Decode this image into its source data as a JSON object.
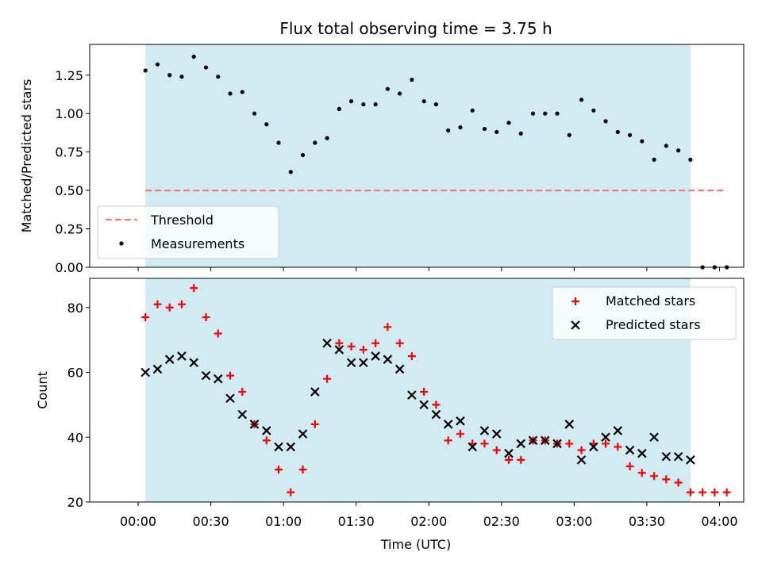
{
  "chart_data": {
    "type": "scatter",
    "title": "Flux total observing time = 3.75 h",
    "xlabel": "Time (UTC)",
    "x_ticks": [
      "00:00",
      "00:30",
      "01:00",
      "01:30",
      "02:00",
      "02:30",
      "03:00",
      "03:30",
      "04:00"
    ],
    "shaded_region": {
      "from_min": 3,
      "to_min": 228,
      "color": "#add8e6"
    },
    "panels": [
      {
        "ylabel": "Matched/Predicted stars",
        "ylim": [
          0,
          1.45
        ],
        "y_ticks": [
          "0.00",
          "0.25",
          "0.50",
          "0.75",
          "1.00",
          "1.25"
        ],
        "legend": {
          "placement": "lower-left",
          "entries": [
            "Threshold",
            "Measurements"
          ]
        },
        "threshold": {
          "name": "Threshold",
          "value": 0.5,
          "x_from_min": 3,
          "x_to_min": 243,
          "color": "#f08080"
        },
        "series": [
          {
            "name": "Measurements",
            "marker": "dot",
            "color": "#000000",
            "x_min": [
              3,
              8,
              13,
              18,
              23,
              28,
              33,
              38,
              43,
              48,
              53,
              58,
              63,
              68,
              73,
              78,
              83,
              88,
              93,
              98,
              103,
              108,
              113,
              118,
              123,
              128,
              133,
              138,
              143,
              148,
              153,
              158,
              163,
              168,
              173,
              178,
              183,
              188,
              193,
              198,
              203,
              208,
              213,
              218,
              223,
              228,
              233,
              238,
              243
            ],
            "y": [
              1.28,
              1.32,
              1.25,
              1.24,
              1.37,
              1.3,
              1.24,
              1.13,
              1.14,
              1.0,
              0.93,
              0.81,
              0.62,
              0.73,
              0.81,
              0.84,
              1.03,
              1.08,
              1.06,
              1.06,
              1.16,
              1.13,
              1.22,
              1.08,
              1.06,
              0.89,
              0.91,
              1.02,
              0.9,
              0.88,
              0.94,
              0.87,
              1.0,
              1.0,
              1.0,
              0.86,
              1.09,
              1.02,
              0.95,
              0.88,
              0.86,
              0.82,
              0.7,
              0.79,
              0.76,
              0.7,
              0.0,
              0.0,
              0.0
            ]
          }
        ]
      },
      {
        "ylabel": "Count",
        "ylim": [
          20,
          89
        ],
        "y_ticks": [
          "20",
          "40",
          "60",
          "80"
        ],
        "legend": {
          "placement": "upper-right",
          "entries": [
            "Matched stars",
            "Predicted stars"
          ]
        },
        "series": [
          {
            "name": "Matched stars",
            "marker": "plus",
            "color": "#ff0000",
            "x_min": [
              3,
              8,
              13,
              18,
              23,
              28,
              33,
              38,
              43,
              48,
              53,
              58,
              63,
              68,
              73,
              78,
              83,
              88,
              93,
              98,
              103,
              108,
              113,
              118,
              123,
              128,
              133,
              138,
              143,
              148,
              153,
              158,
              163,
              168,
              173,
              178,
              183,
              188,
              193,
              198,
              203,
              208,
              213,
              218,
              223,
              228,
              233,
              238,
              243
            ],
            "y": [
              77,
              81,
              80,
              81,
              86,
              77,
              72,
              59,
              54,
              44,
              39,
              30,
              23,
              30,
              44,
              58,
              69,
              68,
              67,
              69,
              74,
              69,
              65,
              54,
              50,
              39,
              41,
              38,
              38,
              36,
              33,
              33,
              39,
              39,
              38,
              38,
              36,
              38,
              38,
              37,
              31,
              29,
              28,
              27,
              26,
              23,
              23,
              23,
              23
            ]
          },
          {
            "name": "Predicted stars",
            "marker": "x",
            "color": "#000000",
            "x_min": [
              3,
              8,
              13,
              18,
              23,
              28,
              33,
              38,
              43,
              48,
              53,
              58,
              63,
              68,
              73,
              78,
              83,
              88,
              93,
              98,
              103,
              108,
              113,
              118,
              123,
              128,
              133,
              138,
              143,
              148,
              153,
              158,
              163,
              168,
              173,
              178,
              183,
              188,
              193,
              198,
              203,
              208,
              213,
              218,
              223,
              228
            ],
            "y": [
              60,
              61,
              64,
              65,
              63,
              59,
              58,
              52,
              47,
              44,
              42,
              37,
              37,
              41,
              54,
              69,
              67,
              63,
              63,
              65,
              64,
              61,
              53,
              50,
              47,
              44,
              45,
              37,
              42,
              41,
              35,
              38,
              39,
              39,
              38,
              44,
              33,
              37,
              40,
              42,
              36,
              35,
              40,
              34,
              34,
              33
            ]
          }
        ]
      }
    ]
  }
}
